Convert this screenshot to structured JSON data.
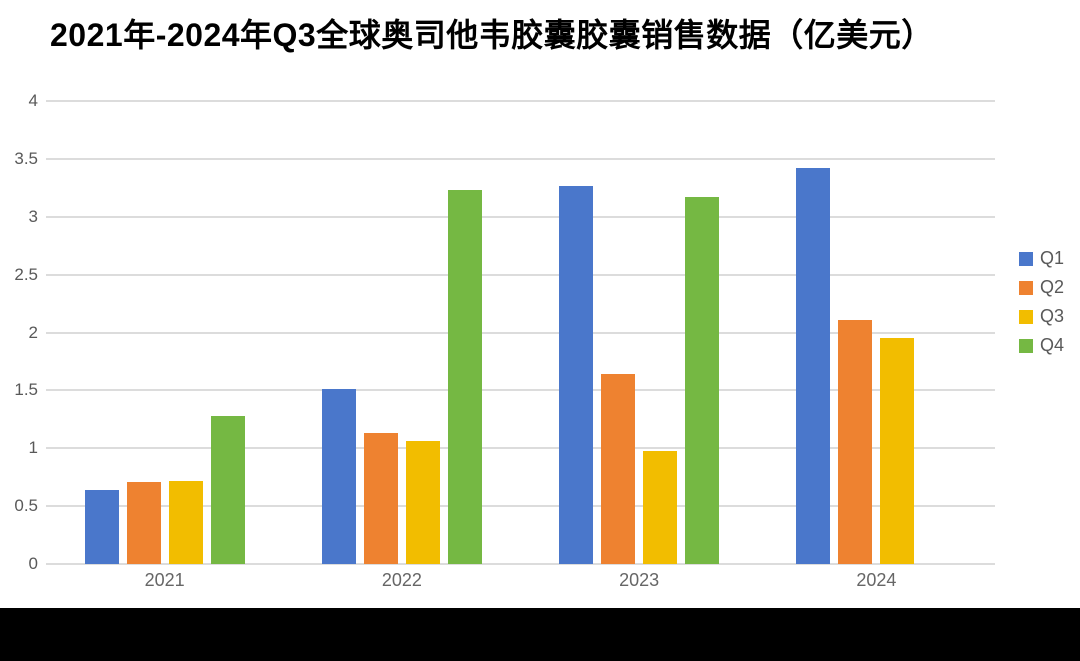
{
  "chart_data": {
    "type": "bar",
    "title": "2021年-2024年Q3全球奥司他韦胶囊胶囊销售数据（亿美元）",
    "categories": [
      "2021",
      "2022",
      "2023",
      "2024"
    ],
    "series": [
      {
        "name": "Q1",
        "color": "#4A77CB",
        "values": [
          0.64,
          1.51,
          3.27,
          3.42
        ]
      },
      {
        "name": "Q2",
        "color": "#EE8230",
        "values": [
          0.71,
          1.13,
          1.64,
          2.11
        ]
      },
      {
        "name": "Q3",
        "color": "#F2BD00",
        "values": [
          0.72,
          1.06,
          0.98,
          1.95
        ]
      },
      {
        "name": "Q4",
        "color": "#75B843",
        "values": [
          1.28,
          3.23,
          3.17,
          null
        ]
      }
    ],
    "xlabel": "",
    "ylabel": "",
    "ylim": [
      0,
      4
    ],
    "yticks": [
      0,
      0.5,
      1,
      1.5,
      2,
      2.5,
      3,
      3.5,
      4
    ],
    "ytick_labels": [
      "0",
      "0.5",
      "1",
      "1.5",
      "2",
      "2.5",
      "3",
      "3.5",
      "4"
    ],
    "grid": true,
    "legend_position": "right",
    "legend_entries": [
      "Q1",
      "Q2",
      "Q3",
      "Q4"
    ]
  },
  "styles": {
    "background": "#ffffff",
    "grid_color": "#dcdcdc",
    "tick_label_color": "#595959",
    "x_label_color": "#666666",
    "title_color": "#000000",
    "bottom_bar_color": "#000000"
  }
}
